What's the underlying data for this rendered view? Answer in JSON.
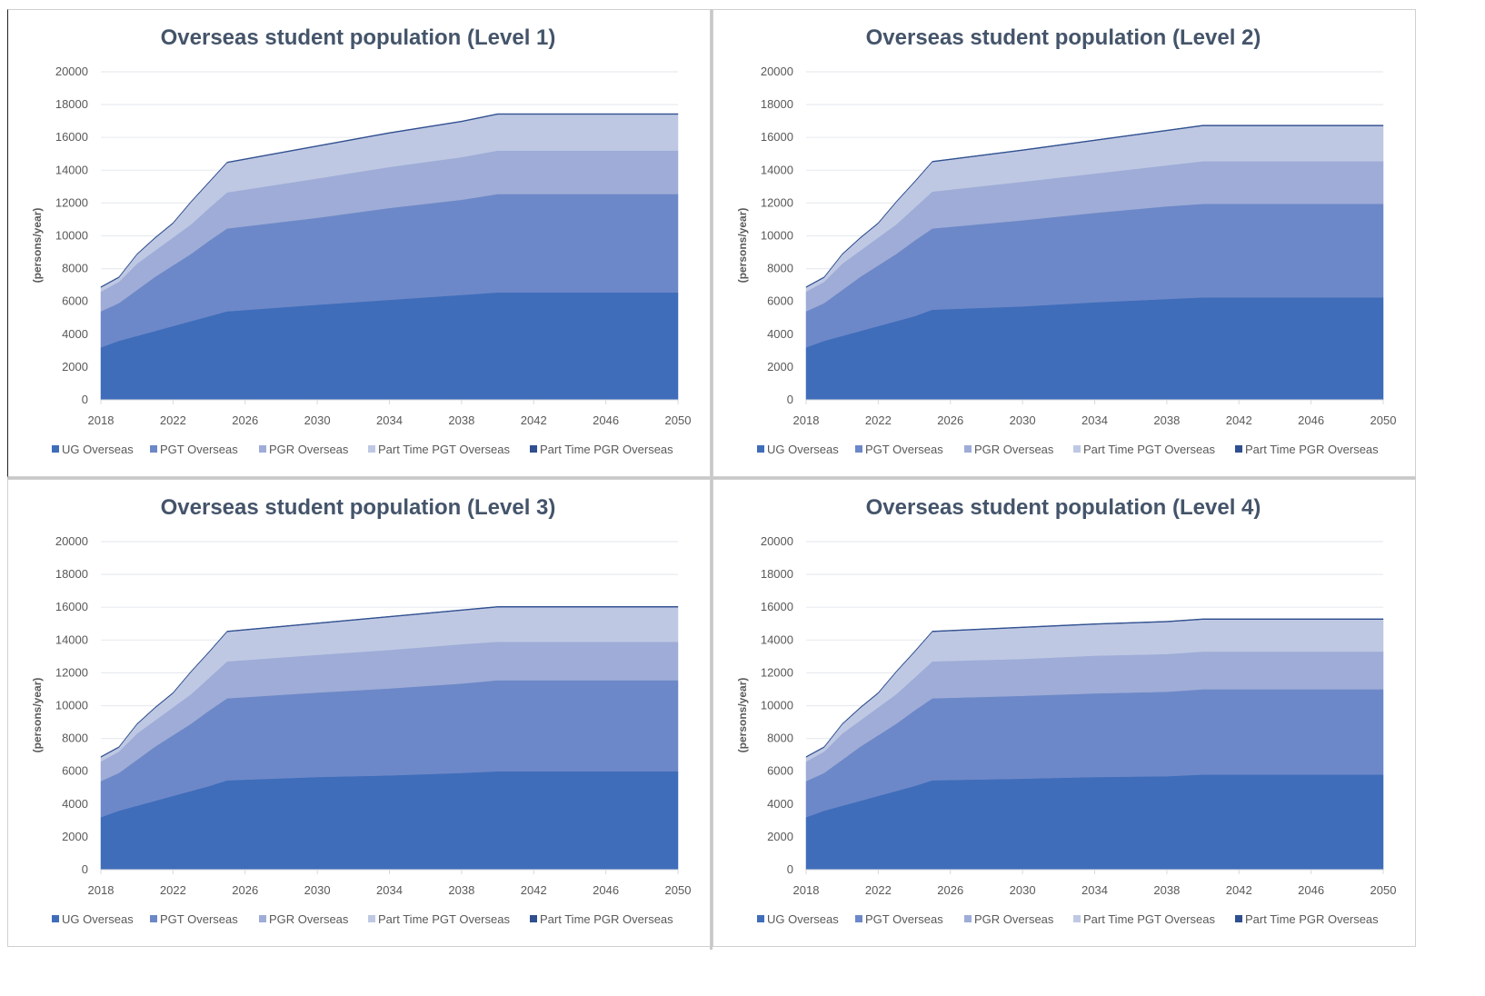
{
  "chart_data": [
    {
      "type": "area",
      "stacked": true,
      "title": "Overseas student population (Level 1)",
      "xlabel": "",
      "ylabel": "(persons/year)",
      "ylim": [
        0,
        20000
      ],
      "yticks": [
        0,
        2000,
        4000,
        6000,
        8000,
        10000,
        12000,
        14000,
        16000,
        18000,
        20000
      ],
      "xlim": [
        2018,
        2050
      ],
      "xticks": [
        2018,
        2022,
        2026,
        2030,
        2034,
        2038,
        2042,
        2046,
        2050
      ],
      "grid": true,
      "legend_position": "bottom",
      "x": [
        2018,
        2019,
        2020,
        2021,
        2022,
        2023,
        2024,
        2025,
        2030,
        2034,
        2038,
        2040,
        2050
      ],
      "series": [
        {
          "name": "UG Overseas",
          "color": "#3f6dba",
          "values": [
            3200,
            3600,
            3900,
            4200,
            4500,
            4800,
            5100,
            5400,
            5800,
            6100,
            6400,
            6550,
            6550
          ]
        },
        {
          "name": "PGT Overseas",
          "color": "#6d88c8",
          "values": [
            2200,
            2300,
            2800,
            3300,
            3700,
            4100,
            4600,
            5050,
            5300,
            5600,
            5800,
            6000,
            6000
          ]
        },
        {
          "name": "PGR Overseas",
          "color": "#9eacd7",
          "values": [
            1200,
            1300,
            1600,
            1600,
            1700,
            1800,
            2000,
            2200,
            2400,
            2500,
            2600,
            2650,
            2650
          ]
        },
        {
          "name": "Part Time PGT Overseas",
          "color": "#bfc8e3",
          "values": [
            250,
            250,
            550,
            750,
            850,
            1350,
            1550,
            1800,
            1950,
            2050,
            2150,
            2200,
            2200
          ]
        },
        {
          "name": "Part Time PGR Overseas",
          "color": "#2f4f8f",
          "values": [
            50,
            50,
            50,
            50,
            50,
            50,
            50,
            50,
            50,
            50,
            50,
            50,
            50
          ]
        }
      ]
    },
    {
      "type": "area",
      "stacked": true,
      "title": "Overseas student population (Level 2)",
      "xlabel": "",
      "ylabel": "(persons/year)",
      "ylim": [
        0,
        20000
      ],
      "yticks": [
        0,
        2000,
        4000,
        6000,
        8000,
        10000,
        12000,
        14000,
        16000,
        18000,
        20000
      ],
      "xlim": [
        2018,
        2050
      ],
      "xticks": [
        2018,
        2022,
        2026,
        2030,
        2034,
        2038,
        2042,
        2046,
        2050
      ],
      "grid": true,
      "legend_position": "bottom",
      "x": [
        2018,
        2019,
        2020,
        2021,
        2022,
        2023,
        2024,
        2025,
        2030,
        2034,
        2038,
        2040,
        2050
      ],
      "series": [
        {
          "name": "UG Overseas",
          "color": "#3f6dba",
          "values": [
            3200,
            3600,
            3900,
            4200,
            4500,
            4800,
            5100,
            5500,
            5700,
            5950,
            6150,
            6250,
            6250
          ]
        },
        {
          "name": "PGT Overseas",
          "color": "#6d88c8",
          "values": [
            2200,
            2300,
            2800,
            3300,
            3700,
            4100,
            4600,
            4950,
            5250,
            5450,
            5650,
            5700,
            5700
          ]
        },
        {
          "name": "PGR Overseas",
          "color": "#9eacd7",
          "values": [
            1200,
            1300,
            1600,
            1600,
            1700,
            1800,
            2000,
            2250,
            2350,
            2400,
            2500,
            2600,
            2600
          ]
        },
        {
          "name": "Part Time PGT Overseas",
          "color": "#bfc8e3",
          "values": [
            250,
            250,
            550,
            750,
            850,
            1350,
            1550,
            1800,
            1900,
            2000,
            2100,
            2150,
            2150
          ]
        },
        {
          "name": "Part Time PGR Overseas",
          "color": "#2f4f8f",
          "values": [
            50,
            50,
            50,
            50,
            50,
            50,
            50,
            50,
            50,
            50,
            50,
            50,
            50
          ]
        }
      ]
    },
    {
      "type": "area",
      "stacked": true,
      "title": "Overseas student population (Level 3)",
      "xlabel": "",
      "ylabel": "(persons/year)",
      "ylim": [
        0,
        20000
      ],
      "yticks": [
        0,
        2000,
        4000,
        6000,
        8000,
        10000,
        12000,
        14000,
        16000,
        18000,
        20000
      ],
      "xlim": [
        2018,
        2050
      ],
      "xticks": [
        2018,
        2022,
        2026,
        2030,
        2034,
        2038,
        2042,
        2046,
        2050
      ],
      "grid": true,
      "legend_position": "bottom",
      "x": [
        2018,
        2019,
        2020,
        2021,
        2022,
        2023,
        2024,
        2025,
        2030,
        2034,
        2038,
        2040,
        2050
      ],
      "series": [
        {
          "name": "UG Overseas",
          "color": "#3f6dba",
          "values": [
            3200,
            3600,
            3900,
            4200,
            4500,
            4800,
            5100,
            5450,
            5650,
            5750,
            5900,
            6000,
            6000
          ]
        },
        {
          "name": "PGT Overseas",
          "color": "#6d88c8",
          "values": [
            2200,
            2300,
            2800,
            3300,
            3700,
            4100,
            4600,
            5000,
            5150,
            5300,
            5450,
            5550,
            5550
          ]
        },
        {
          "name": "PGR Overseas",
          "color": "#9eacd7",
          "values": [
            1200,
            1300,
            1600,
            1600,
            1700,
            1800,
            2000,
            2250,
            2300,
            2350,
            2400,
            2350,
            2350
          ]
        },
        {
          "name": "Part Time PGT Overseas",
          "color": "#bfc8e3",
          "values": [
            250,
            250,
            550,
            750,
            850,
            1350,
            1550,
            1800,
            1900,
            2000,
            2050,
            2100,
            2100
          ]
        },
        {
          "name": "Part Time PGR Overseas",
          "color": "#2f4f8f",
          "values": [
            50,
            50,
            50,
            50,
            50,
            50,
            50,
            50,
            50,
            50,
            50,
            50,
            50
          ]
        }
      ]
    },
    {
      "type": "area",
      "stacked": true,
      "title": "Overseas student population (Level 4)",
      "xlabel": "",
      "ylabel": "(persons/year)",
      "ylim": [
        0,
        20000
      ],
      "yticks": [
        0,
        2000,
        4000,
        6000,
        8000,
        10000,
        12000,
        14000,
        16000,
        18000,
        20000
      ],
      "xlim": [
        2018,
        2050
      ],
      "xticks": [
        2018,
        2022,
        2026,
        2030,
        2034,
        2038,
        2042,
        2046,
        2050
      ],
      "grid": true,
      "legend_position": "bottom",
      "x": [
        2018,
        2019,
        2020,
        2021,
        2022,
        2023,
        2024,
        2025,
        2030,
        2034,
        2038,
        2040,
        2050
      ],
      "series": [
        {
          "name": "UG Overseas",
          "color": "#3f6dba",
          "values": [
            3200,
            3600,
            3900,
            4200,
            4500,
            4800,
            5100,
            5450,
            5550,
            5650,
            5700,
            5800,
            5800
          ]
        },
        {
          "name": "PGT Overseas",
          "color": "#6d88c8",
          "values": [
            2200,
            2300,
            2800,
            3300,
            3700,
            4100,
            4600,
            5000,
            5050,
            5100,
            5150,
            5200,
            5200
          ]
        },
        {
          "name": "PGR Overseas",
          "color": "#9eacd7",
          "values": [
            1200,
            1300,
            1600,
            1600,
            1700,
            1800,
            2000,
            2250,
            2250,
            2300,
            2300,
            2300,
            2300
          ]
        },
        {
          "name": "Part Time PGT Overseas",
          "color": "#bfc8e3",
          "values": [
            250,
            250,
            550,
            750,
            850,
            1350,
            1550,
            1800,
            1900,
            1900,
            1950,
            1950,
            1950
          ]
        },
        {
          "name": "Part Time PGR Overseas",
          "color": "#2f4f8f",
          "values": [
            50,
            50,
            50,
            50,
            50,
            50,
            50,
            50,
            50,
            50,
            50,
            50,
            50
          ]
        }
      ]
    }
  ]
}
